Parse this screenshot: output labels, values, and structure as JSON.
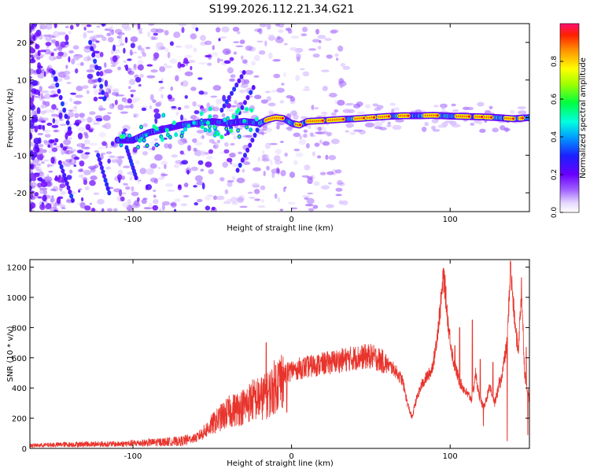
{
  "title": "S199.2026.112.21.34.G21",
  "chart_data": [
    {
      "type": "heatmap",
      "xlabel": "Height of straight line (km)",
      "ylabel": "Frequency (Hz)",
      "xlim": [
        -165,
        150
      ],
      "ylim": [
        -25,
        25
      ],
      "xticks": [
        -100,
        0,
        100
      ],
      "yticks": [
        -20,
        -10,
        0,
        10,
        20
      ],
      "colorbar": {
        "label": "Normalized spectral amplitude",
        "range": [
          0,
          1
        ],
        "ticks": [
          0.0,
          0.2,
          0.4,
          0.6,
          0.8
        ],
        "tick_labels": [
          "0.0",
          "0.2",
          "0.4",
          "0.6",
          "0.8"
        ]
      },
      "ridge": [
        [
          -108,
          -6
        ],
        [
          -100,
          -6
        ],
        [
          -90,
          -4
        ],
        [
          -80,
          -3
        ],
        [
          -70,
          -2
        ],
        [
          -60,
          -1.5
        ],
        [
          -50,
          -1
        ],
        [
          -40,
          -1.5
        ],
        [
          -30,
          -1
        ],
        [
          -20,
          -1.5
        ],
        [
          -15,
          -0.5
        ],
        [
          -10,
          0
        ],
        [
          -5,
          -0.2
        ],
        [
          0,
          -1.5
        ],
        [
          5,
          -2
        ],
        [
          10,
          -1
        ],
        [
          20,
          -0.8
        ],
        [
          30,
          -0.5
        ],
        [
          40,
          -0.3
        ],
        [
          50,
          0
        ],
        [
          60,
          0.3
        ],
        [
          70,
          0.5
        ],
        [
          80,
          0.5
        ],
        [
          90,
          0.6
        ],
        [
          100,
          0.4
        ],
        [
          110,
          0.3
        ],
        [
          120,
          0.2
        ],
        [
          130,
          0
        ],
        [
          140,
          -0.3
        ],
        [
          150,
          0
        ]
      ]
    },
    {
      "type": "line",
      "xlabel": "Height of straight line (km)",
      "ylabel": "SNR (10 * v/v)",
      "xlim": [
        -165,
        150
      ],
      "ylim": [
        0,
        1250
      ],
      "xticks": [
        -100,
        0,
        100
      ],
      "yticks": [
        0,
        200,
        400,
        600,
        800,
        1000,
        1200
      ],
      "color": "#e8342c",
      "envelope": [
        [
          -165,
          20
        ],
        [
          -150,
          25
        ],
        [
          -130,
          30
        ],
        [
          -110,
          30
        ],
        [
          -90,
          40
        ],
        [
          -80,
          45
        ],
        [
          -70,
          50
        ],
        [
          -60,
          70
        ],
        [
          -55,
          110
        ],
        [
          -50,
          160
        ],
        [
          -45,
          200
        ],
        [
          -40,
          240
        ],
        [
          -35,
          260
        ],
        [
          -30,
          280
        ],
        [
          -25,
          320
        ],
        [
          -20,
          330
        ],
        [
          -15,
          350
        ],
        [
          -10,
          420
        ],
        [
          -5,
          480
        ],
        [
          0,
          520
        ],
        [
          10,
          540
        ],
        [
          20,
          560
        ],
        [
          30,
          580
        ],
        [
          40,
          600
        ],
        [
          50,
          610
        ],
        [
          55,
          590
        ],
        [
          60,
          560
        ],
        [
          65,
          520
        ],
        [
          70,
          450
        ],
        [
          73,
          300
        ],
        [
          76,
          200
        ],
        [
          78,
          300
        ],
        [
          82,
          420
        ],
        [
          85,
          470
        ],
        [
          88,
          510
        ],
        [
          90,
          600
        ],
        [
          93,
          850
        ],
        [
          96,
          1150
        ],
        [
          99,
          800
        ],
        [
          102,
          580
        ],
        [
          106,
          440
        ],
        [
          110,
          370
        ],
        [
          114,
          320
        ],
        [
          116,
          500
        ],
        [
          118,
          360
        ],
        [
          121,
          270
        ],
        [
          125,
          400
        ],
        [
          128,
          300
        ],
        [
          132,
          450
        ],
        [
          136,
          700
        ],
        [
          138,
          1200
        ],
        [
          141,
          800
        ],
        [
          143,
          650
        ],
        [
          145,
          1050
        ],
        [
          147,
          500
        ],
        [
          150,
          320
        ]
      ],
      "spikes": [
        [
          -16,
          700
        ],
        [
          -8,
          560
        ],
        [
          -3,
          240
        ],
        [
          3,
          530
        ],
        [
          96,
          1190
        ],
        [
          103,
          680
        ],
        [
          106,
          800
        ],
        [
          114,
          850
        ],
        [
          119,
          590
        ],
        [
          121,
          150
        ],
        [
          127,
          570
        ],
        [
          131,
          470
        ],
        [
          136,
          50
        ],
        [
          138,
          1240
        ],
        [
          141,
          830
        ],
        [
          145,
          1130
        ],
        [
          148,
          670
        ],
        [
          149,
          90
        ]
      ]
    }
  ]
}
